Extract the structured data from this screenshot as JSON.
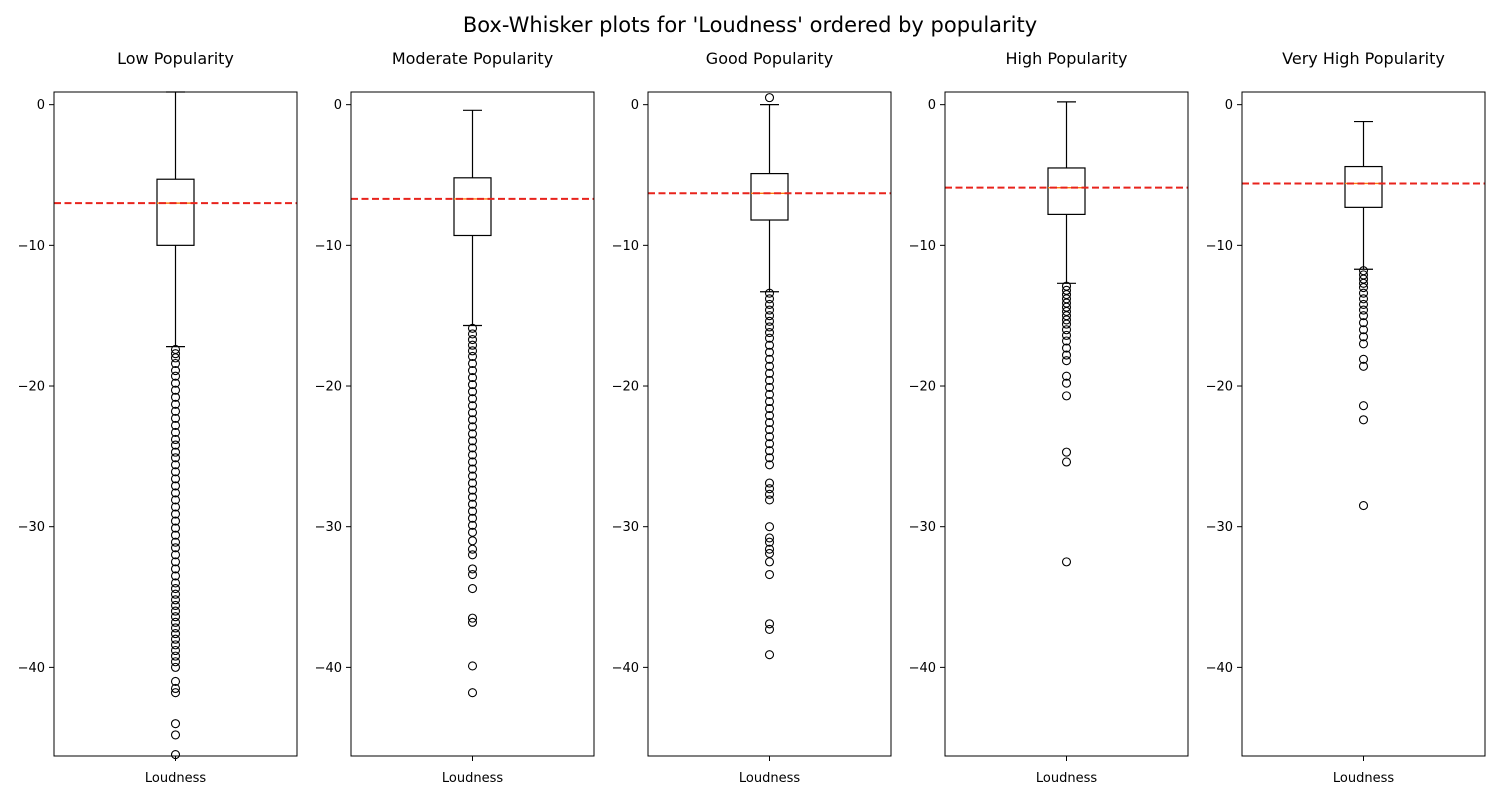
{
  "figure": {
    "title": "Box-Whisker plots for 'Loudness' ordered by popularity"
  },
  "chart_data": [
    {
      "type": "box",
      "title": "Low Popularity",
      "xlabel": "",
      "ylabel": "",
      "categories": [
        "Loudness"
      ],
      "ylim": [
        -46.3,
        0.9
      ],
      "yticks": [
        0,
        -10,
        -20,
        -30,
        -40
      ],
      "grid": false,
      "mean_line": -7.0,
      "box": {
        "whisker_high": 0.9,
        "q3": -5.3,
        "median": -7.0,
        "q1": -10.0,
        "whisker_low": -17.2
      },
      "outliers": [
        -17.4,
        -17.7,
        -18.0,
        -18.4,
        -18.9,
        -19.3,
        -19.8,
        -20.3,
        -20.8,
        -21.3,
        -21.8,
        -22.3,
        -22.8,
        -23.3,
        -23.8,
        -24.2,
        -24.7,
        -25.1,
        -25.6,
        -26.1,
        -26.6,
        -27.1,
        -27.6,
        -28.1,
        -28.6,
        -29.1,
        -29.6,
        -30.1,
        -30.6,
        -31.1,
        -31.5,
        -32.0,
        -32.5,
        -33.0,
        -33.5,
        -34.0,
        -34.4,
        -34.8,
        -35.2,
        -35.6,
        -36.0,
        -36.4,
        -36.8,
        -37.2,
        -37.6,
        -38.0,
        -38.4,
        -38.8,
        -39.2,
        -39.6,
        -40.0,
        -41.0,
        -41.5,
        -41.8,
        -44.0,
        -44.8,
        -46.2
      ]
    },
    {
      "type": "box",
      "title": "Moderate Popularity",
      "xlabel": "",
      "ylabel": "",
      "categories": [
        "Loudness"
      ],
      "ylim": [
        -46.3,
        0.9
      ],
      "yticks": [
        0,
        -10,
        -20,
        -30,
        -40
      ],
      "grid": false,
      "mean_line": -6.7,
      "box": {
        "whisker_high": -0.4,
        "q3": -5.2,
        "median": -6.7,
        "q1": -9.3,
        "whisker_low": -15.7
      },
      "outliers": [
        -15.9,
        -16.3,
        -16.7,
        -17.1,
        -17.5,
        -17.9,
        -18.4,
        -18.9,
        -19.4,
        -19.9,
        -20.4,
        -20.9,
        -21.4,
        -21.9,
        -22.4,
        -22.9,
        -23.4,
        -23.9,
        -24.4,
        -24.9,
        -25.4,
        -25.9,
        -26.4,
        -26.9,
        -27.4,
        -27.9,
        -28.4,
        -28.9,
        -29.4,
        -29.9,
        -30.4,
        -31.0,
        -31.6,
        -32.0,
        -33.0,
        -33.4,
        -34.4,
        -36.5,
        -36.8,
        -39.9,
        -41.8
      ]
    },
    {
      "type": "box",
      "title": "Good Popularity",
      "xlabel": "",
      "ylabel": "",
      "categories": [
        "Loudness"
      ],
      "ylim": [
        -46.3,
        0.9
      ],
      "yticks": [
        0,
        -10,
        -20,
        -30,
        -40
      ],
      "grid": false,
      "mean_line": -6.3,
      "box": {
        "whisker_high": 0.0,
        "q3": -4.9,
        "median": -6.3,
        "q1": -8.2,
        "whisker_low": -13.3
      },
      "outliers": [
        0.5,
        -13.4,
        -13.8,
        -14.2,
        -14.6,
        -15.0,
        -15.4,
        -15.8,
        -16.2,
        -16.6,
        -17.1,
        -17.6,
        -18.1,
        -18.6,
        -19.1,
        -19.6,
        -20.1,
        -20.6,
        -21.1,
        -21.6,
        -22.1,
        -22.6,
        -23.1,
        -23.6,
        -24.1,
        -24.6,
        -25.1,
        -25.6,
        -26.9,
        -27.3,
        -27.7,
        -28.1,
        -30.0,
        -30.8,
        -31.1,
        -31.6,
        -31.9,
        -32.5,
        -33.4,
        -36.9,
        -37.3,
        -39.1
      ]
    },
    {
      "type": "box",
      "title": "High Popularity",
      "xlabel": "",
      "ylabel": "",
      "categories": [
        "Loudness"
      ],
      "ylim": [
        -46.3,
        0.9
      ],
      "yticks": [
        0,
        -10,
        -20,
        -30,
        -40
      ],
      "grid": false,
      "mean_line": -5.9,
      "box": {
        "whisker_high": 0.2,
        "q3": -4.5,
        "median": -5.9,
        "q1": -7.8,
        "whisker_low": -12.7
      },
      "outliers": [
        -12.9,
        -13.2,
        -13.5,
        -13.8,
        -14.1,
        -14.4,
        -14.7,
        -15.0,
        -15.3,
        -15.6,
        -16.0,
        -16.4,
        -16.8,
        -17.3,
        -17.8,
        -18.2,
        -19.3,
        -19.8,
        -20.7,
        -24.7,
        -25.4,
        -32.5
      ]
    },
    {
      "type": "box",
      "title": "Very High Popularity",
      "xlabel": "",
      "ylabel": "",
      "categories": [
        "Loudness"
      ],
      "ylim": [
        -46.3,
        0.9
      ],
      "yticks": [
        0,
        -10,
        -20,
        -30,
        -40
      ],
      "grid": false,
      "mean_line": -5.6,
      "box": {
        "whisker_high": -1.2,
        "q3": -4.4,
        "median": -5.6,
        "q1": -7.3,
        "whisker_low": -11.7
      },
      "outliers": [
        -11.8,
        -12.1,
        -12.4,
        -12.7,
        -13.0,
        -13.4,
        -13.8,
        -14.2,
        -14.6,
        -15.0,
        -15.5,
        -16.0,
        -16.5,
        -17.0,
        -18.1,
        -18.6,
        -21.4,
        -22.4,
        -28.5
      ]
    }
  ]
}
